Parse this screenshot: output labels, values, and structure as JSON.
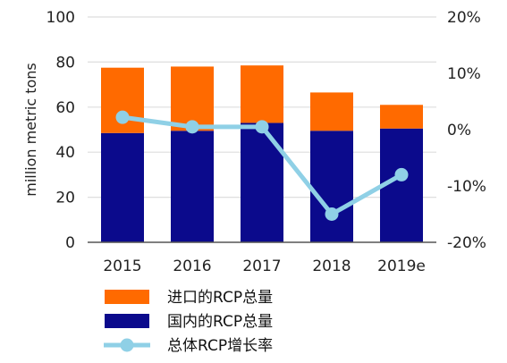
{
  "chart_data": {
    "type": "bar",
    "stacked": true,
    "categories": [
      "2015",
      "2016",
      "2017",
      "2018",
      "2019e"
    ],
    "ylabel": "million metric tons",
    "ylim": [
      0,
      100
    ],
    "yticks": [
      "0",
      "20",
      "40",
      "60",
      "80",
      "100"
    ],
    "y2lim": [
      -20,
      20
    ],
    "y2ticks": [
      "-20%",
      "-10%",
      "0%",
      "10%",
      "20%"
    ],
    "grid": true,
    "legend_position": "bottom-left",
    "series": [
      {
        "name": "国内的RCP总量",
        "values": [
          48.5,
          49.5,
          53,
          49.5,
          50.5
        ],
        "color": "#0b0a8c"
      },
      {
        "name": "进口的RCP总量",
        "values": [
          29,
          28.5,
          25.5,
          17,
          10.5
        ],
        "color": "#ff6a00"
      },
      {
        "name": "总体RCP增长率",
        "type": "line",
        "axis": "right",
        "values": [
          2.2,
          0.5,
          0.5,
          -15,
          -8
        ],
        "color": "#8fd0e6"
      }
    ]
  }
}
